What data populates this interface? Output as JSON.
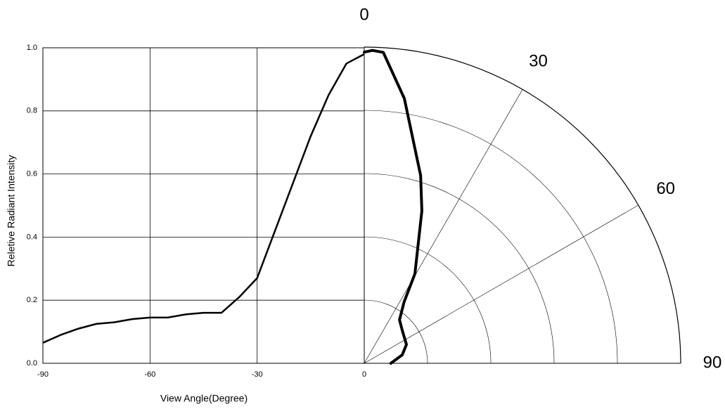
{
  "chart_data": [
    {
      "type": "line",
      "xlabel": "View Angle(Degree)",
      "ylabel": "Reletive Radiant Intensity",
      "x": [
        -90,
        -85,
        -80,
        -75,
        -70,
        -65,
        -60,
        -55,
        -50,
        -45,
        -40,
        -35,
        -30,
        -25,
        -20,
        -15,
        -10,
        -5,
        0
      ],
      "values": [
        0.065,
        0.09,
        0.11,
        0.125,
        0.13,
        0.14,
        0.145,
        0.145,
        0.155,
        0.16,
        0.16,
        0.21,
        0.27,
        0.42,
        0.57,
        0.72,
        0.85,
        0.95,
        0.98
      ],
      "color": "#000000",
      "xlim": [
        -90,
        0
      ],
      "xticks": [
        -90,
        -60,
        -30,
        0
      ],
      "ylim": [
        0,
        1.0
      ],
      "yticks": [
        {
          "value": 0,
          "label": "0.0"
        },
        {
          "value": 0.2,
          "label": "0.2"
        },
        {
          "value": 0.4,
          "label": "0.4"
        },
        {
          "value": 0.6,
          "label": "0.6"
        },
        {
          "value": 0.8,
          "label": "0.8"
        },
        {
          "value": 1.0,
          "label": "1.0"
        }
      ],
      "grid": true
    },
    {
      "type": "polar",
      "theta": [
        0,
        1.5,
        3.5,
        8.6,
        16.7,
        20.7,
        29.5,
        33,
        39,
        49,
        66,
        77.5,
        90
      ],
      "r": [
        0.984,
        0.99,
        0.985,
        0.847,
        0.62,
        0.515,
        0.325,
        0.231,
        0.177,
        0.159,
        0.146,
        0.123,
        0.084
      ],
      "color": "#000000",
      "rlim": [
        0,
        1.0
      ],
      "rticks": [
        0.2,
        0.4,
        0.6,
        0.8,
        1.0
      ],
      "thetalim": [
        0,
        90
      ],
      "thetaticks": [
        0,
        30,
        60,
        90
      ],
      "grid": true
    }
  ]
}
